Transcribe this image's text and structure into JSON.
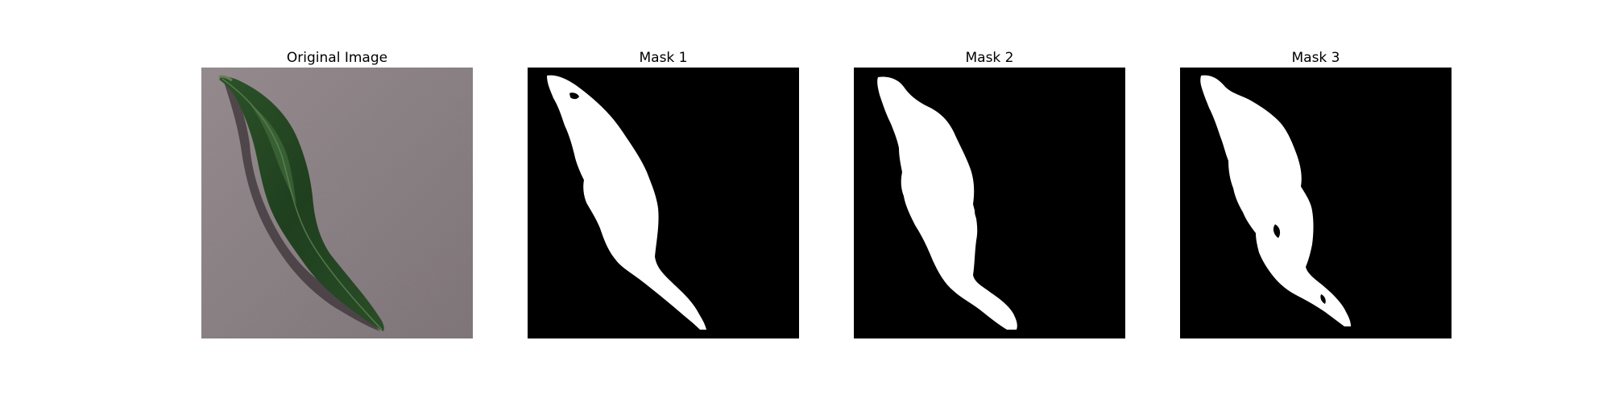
{
  "panels": [
    {
      "title": "Original Image"
    },
    {
      "title": "Mask 1"
    },
    {
      "title": "Mask 2"
    },
    {
      "title": "Mask 3"
    }
  ],
  "colors": {
    "background_surface": "#8f8589",
    "leaf_dark": "#1f3d1f",
    "leaf_mid": "#2f5a2c",
    "leaf_highlight": "#4d7a45",
    "shadow": "#3b3336",
    "mask_background": "#000000",
    "mask_foreground": "#ffffff"
  }
}
